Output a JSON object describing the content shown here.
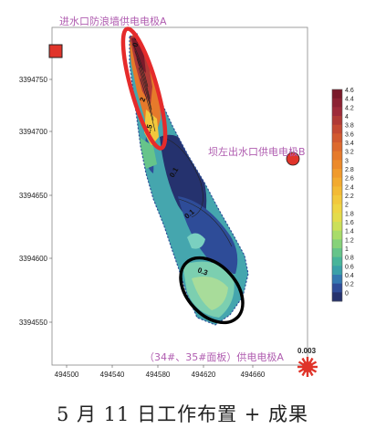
{
  "chart_data": {
    "type": "contour",
    "x_ticks": [
      "494500",
      "494540",
      "494580",
      "494620",
      "494660"
    ],
    "y_ticks": [
      "3394750",
      "3394700",
      "3394650",
      "3394600",
      "3394550"
    ],
    "xlim": [
      494490,
      494680
    ],
    "ylim": [
      3394515,
      3394790
    ],
    "colorbar": {
      "ticks": [
        "4.6",
        "4.4",
        "4.2",
        "4",
        "3.8",
        "3.6",
        "3.4",
        "3.2",
        "3",
        "2.8",
        "2.6",
        "2.4",
        "2.2",
        "2",
        "1.8",
        "1.6",
        "1.4",
        "1.2",
        "1",
        "0.8",
        "0.6",
        "0.4",
        "0.2",
        "0"
      ],
      "colors": [
        "#7a1a2a",
        "#8c2233",
        "#9e2b3a",
        "#b03a36",
        "#c44a33",
        "#d25a30",
        "#dd6a2e",
        "#e67a2b",
        "#ec8a2a",
        "#f09a2c",
        "#f2aa30",
        "#f3ba35",
        "#f2c83c",
        "#eed544",
        "#e3dc4c",
        "#cbe05a",
        "#a8dc6a",
        "#86d27a",
        "#66c48a",
        "#48b49a",
        "#3aa0a8",
        "#3478b0",
        "#2e4c98",
        "#25326e"
      ]
    },
    "contour_labels": [
      "0.3",
      "2",
      "1.5",
      "0.1",
      "0.1",
      "0.3"
    ],
    "electrodes": [
      {
        "label": "进水口防浪墙供电电极A",
        "x": 494495,
        "y": 3394763,
        "marker": "red-square"
      },
      {
        "label": "坝左出水口供电电极B",
        "x": 494662,
        "y": 3394679,
        "marker": "red-circle"
      },
      {
        "label": "（34#、35#面板）供电电极A",
        "x": 494680,
        "y": 3394521,
        "marker": "red-star-gear",
        "value_label": "0.003"
      }
    ],
    "highlight_ellipses": [
      {
        "color": "#e52b2b",
        "region": "north-end anomaly"
      },
      {
        "color": "#000000",
        "region": "south panel anomaly"
      }
    ]
  },
  "caption": "5 月 11 日工作布置 + 成果"
}
